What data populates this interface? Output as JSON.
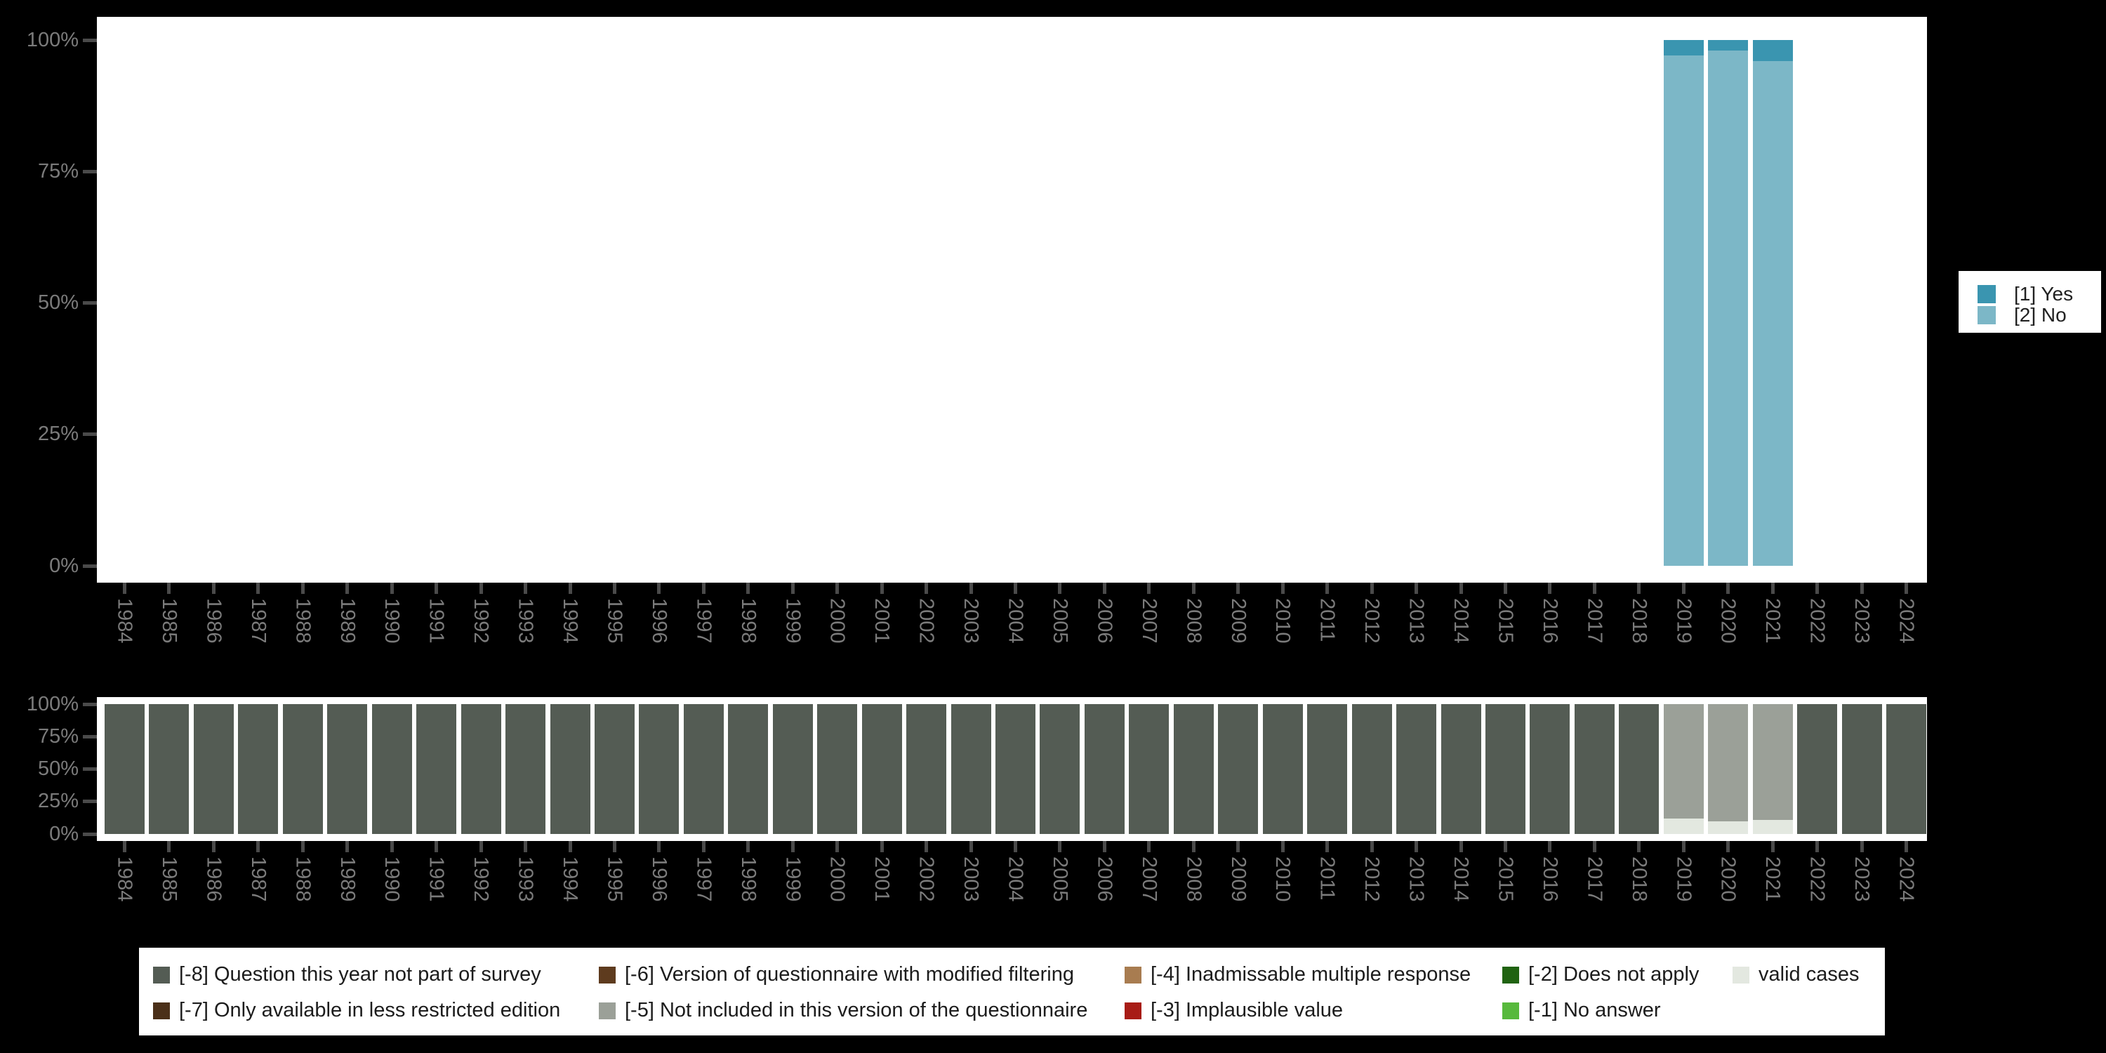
{
  "colors": {
    "background": "#000000",
    "panel": "#ffffff",
    "axis_text": "#7b7b7b",
    "tick": "#4a4a4a",
    "legend_text": "#1c1c1c",
    "yes": "#3a95b0",
    "no": "#7cb7c7",
    "m8": "#545c54",
    "m7": "#4b3019",
    "m6": "#5e3b1e",
    "m5": "#9ba098",
    "m4": "#a87c50",
    "m3": "#a81c16",
    "m2": "#206311",
    "m1": "#57b93c",
    "valid": "#e3e8e0"
  },
  "legend_values": {
    "items": [
      {
        "label": "[1] Yes",
        "color_key": "yes"
      },
      {
        "label": "[2] No",
        "color_key": "no"
      }
    ]
  },
  "legend_missing": {
    "items": [
      {
        "label": "[-8] Question this year not part of survey",
        "color_key": "m8"
      },
      {
        "label": "[-6] Version of questionnaire with modified filtering",
        "color_key": "m6"
      },
      {
        "label": "[-4] Inadmissable multiple response",
        "color_key": "m4"
      },
      {
        "label": "[-2] Does not apply",
        "color_key": "m2"
      },
      {
        "label": "valid cases",
        "color_key": "valid"
      },
      {
        "label": "[-7] Only available in less restricted edition",
        "color_key": "m7"
      },
      {
        "label": "[-5] Not included in this version of the questionnaire",
        "color_key": "m5"
      },
      {
        "label": "[-3] Implausible value",
        "color_key": "m3"
      },
      {
        "label": "[-1] No answer",
        "color_key": "m1"
      }
    ]
  },
  "chart_data": [
    {
      "type": "bar",
      "stacked": true,
      "units": "percent",
      "title": "",
      "legend_position": "right",
      "grid": false,
      "ylim": [
        0,
        100
      ],
      "yticks": [
        {
          "value": 100,
          "label": "100%"
        },
        {
          "value": 75,
          "label": "75%"
        },
        {
          "value": 50,
          "label": "50%"
        },
        {
          "value": 25,
          "label": "25%"
        },
        {
          "value": 0,
          "label": "0%"
        }
      ],
      "categories": [
        "1984",
        "1985",
        "1986",
        "1987",
        "1988",
        "1989",
        "1990",
        "1991",
        "1992",
        "1993",
        "1994",
        "1995",
        "1996",
        "1997",
        "1998",
        "1999",
        "2000",
        "2001",
        "2002",
        "2003",
        "2004",
        "2005",
        "2006",
        "2007",
        "2008",
        "2009",
        "2010",
        "2011",
        "2012",
        "2013",
        "2014",
        "2015",
        "2016",
        "2017",
        "2018",
        "2019",
        "2020",
        "2021",
        "2022",
        "2023",
        "2024"
      ],
      "series": [
        {
          "name": "[1] Yes",
          "color_key": "yes",
          "values_default": 0,
          "values": {
            "2019": 3,
            "2020": 2,
            "2021": 4
          }
        },
        {
          "name": "[2] No",
          "color_key": "no",
          "values_default": 0,
          "values": {
            "2019": 97,
            "2020": 98,
            "2021": 96
          }
        }
      ]
    },
    {
      "type": "bar",
      "stacked": true,
      "units": "percent",
      "title": "",
      "legend_position": "bottom",
      "grid": false,
      "ylim": [
        0,
        100
      ],
      "yticks": [
        {
          "value": 100,
          "label": "100%"
        },
        {
          "value": 75,
          "label": "75%"
        },
        {
          "value": 50,
          "label": "50%"
        },
        {
          "value": 25,
          "label": "25%"
        },
        {
          "value": 0,
          "label": "0%"
        }
      ],
      "categories": [
        "1984",
        "1985",
        "1986",
        "1987",
        "1988",
        "1989",
        "1990",
        "1991",
        "1992",
        "1993",
        "1994",
        "1995",
        "1996",
        "1997",
        "1998",
        "1999",
        "2000",
        "2001",
        "2002",
        "2003",
        "2004",
        "2005",
        "2006",
        "2007",
        "2008",
        "2009",
        "2010",
        "2011",
        "2012",
        "2013",
        "2014",
        "2015",
        "2016",
        "2017",
        "2018",
        "2019",
        "2020",
        "2021",
        "2022",
        "2023",
        "2024"
      ],
      "series": [
        {
          "name": "[-8] Question this year not part of survey",
          "color_key": "m8",
          "values_default": 100,
          "values": {
            "2019": 0,
            "2020": 0,
            "2021": 0
          }
        },
        {
          "name": "[-5] Not included in this version of the questionnaire",
          "color_key": "m5",
          "values_default": 0,
          "values": {
            "2019": 88,
            "2020": 90,
            "2021": 89
          }
        },
        {
          "name": "valid cases",
          "color_key": "valid",
          "values_default": 0,
          "values": {
            "2019": 12,
            "2020": 10,
            "2021": 11
          }
        }
      ]
    }
  ]
}
